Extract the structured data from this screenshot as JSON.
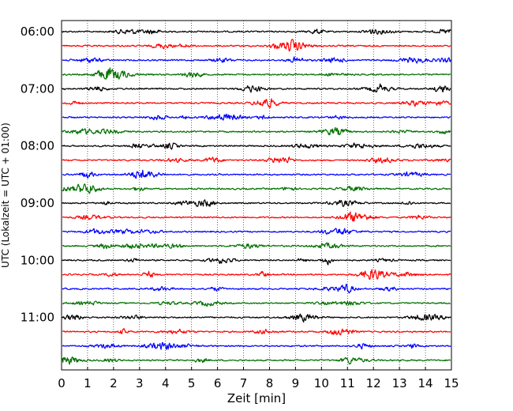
{
  "chart_data": {
    "type": "line",
    "title": "",
    "xlabel": "Zeit  [min]",
    "ylabel": "UTC (Lokalzeit = UTC + 01:00)",
    "xlim": [
      0,
      15
    ],
    "x_ticks": [
      "0",
      "1",
      "2",
      "3",
      "4",
      "5",
      "6",
      "7",
      "8",
      "9",
      "10",
      "11",
      "12",
      "13",
      "14",
      "15"
    ],
    "y_ticks": [
      "06:00",
      "07:00",
      "08:00",
      "09:00",
      "10:00",
      "11:00"
    ],
    "grid": "vertical dotted",
    "legend": "none",
    "trace_colors": [
      "#000000",
      "#ff0000",
      "#0000ff",
      "#007000"
    ],
    "traces": [
      {
        "start": "06:00",
        "color": "#000000"
      },
      {
        "start": "06:15",
        "color": "#ff0000"
      },
      {
        "start": "06:30",
        "color": "#0000ff"
      },
      {
        "start": "06:45",
        "color": "#007000"
      },
      {
        "start": "07:00",
        "color": "#000000"
      },
      {
        "start": "07:15",
        "color": "#ff0000"
      },
      {
        "start": "07:30",
        "color": "#0000ff"
      },
      {
        "start": "07:45",
        "color": "#007000"
      },
      {
        "start": "08:00",
        "color": "#000000"
      },
      {
        "start": "08:15",
        "color": "#ff0000"
      },
      {
        "start": "08:30",
        "color": "#0000ff"
      },
      {
        "start": "08:45",
        "color": "#007000"
      },
      {
        "start": "09:00",
        "color": "#000000"
      },
      {
        "start": "09:15",
        "color": "#ff0000"
      },
      {
        "start": "09:30",
        "color": "#0000ff"
      },
      {
        "start": "09:45",
        "color": "#007000"
      },
      {
        "start": "10:00",
        "color": "#000000"
      },
      {
        "start": "10:15",
        "color": "#ff0000"
      },
      {
        "start": "10:30",
        "color": "#0000ff"
      },
      {
        "start": "10:45",
        "color": "#007000"
      },
      {
        "start": "11:00",
        "color": "#000000"
      },
      {
        "start": "11:15",
        "color": "#ff0000"
      },
      {
        "start": "11:30",
        "color": "#0000ff"
      },
      {
        "start": "11:45",
        "color": "#007000"
      }
    ]
  }
}
